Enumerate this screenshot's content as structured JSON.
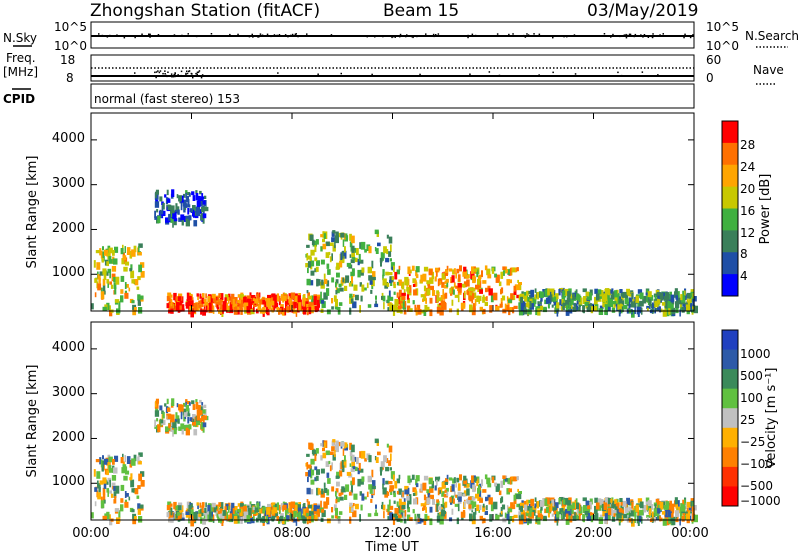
{
  "header": {
    "station": "Zhongshan Station (fitACF)",
    "beam": "Beam 15",
    "date": "03/May/2019"
  },
  "top_panels": {
    "nsky_label": "N.Sky",
    "nsky_ticks": [
      "10^5",
      "10^0"
    ],
    "nsearch_label": "N.Search",
    "nsearch_ticks": [
      "10^5",
      "10^0"
    ],
    "freq_label_line1": "Freq.",
    "freq_label_line2": "[MHz]",
    "freq_ticks": [
      "18",
      "8"
    ],
    "nave_label": "Nave",
    "nave_ticks": [
      "60",
      "0"
    ],
    "cpid_label": "CPID",
    "cpid_text": "normal (fast stereo) 153"
  },
  "colors": {
    "power_scale": [
      "#0000ff",
      "#1f4fa6",
      "#3a7f5a",
      "#40b040",
      "#c8c800",
      "#ffa500",
      "#ff7000",
      "#ff0000"
    ],
    "velocity_scale": [
      "#2040c0",
      "#2d5aa8",
      "#3b8a5a",
      "#60c040",
      "#c0c0c0",
      "#ffb000",
      "#ff8000",
      "#ff3000",
      "#ff0000"
    ]
  },
  "chart_data": [
    {
      "type": "heatmap",
      "panel": "power",
      "ylabel": "Slant Range [km]",
      "yticks": [
        "1000",
        "2000",
        "3000",
        "4000"
      ],
      "ylim": [
        180,
        4600
      ],
      "xlabel": "",
      "xticks": [],
      "colorbar": {
        "label": "Power [dB]",
        "ticks": [
          "4",
          "8",
          "12",
          "16",
          "20",
          "24",
          "28"
        ],
        "range": [
          0,
          32
        ]
      },
      "scatter_regions": [
        {
          "t0": 0.0,
          "t1": 2.0,
          "r0": 200,
          "r1": 1700,
          "value": 18
        },
        {
          "t0": 2.5,
          "t1": 4.5,
          "r0": 2200,
          "r1": 2900,
          "value": 6
        },
        {
          "t0": 3.0,
          "t1": 9.0,
          "r0": 200,
          "r1": 600,
          "value": 26
        },
        {
          "t0": 8.5,
          "t1": 12.0,
          "r0": 200,
          "r1": 2000,
          "value": 14
        },
        {
          "t0": 12.0,
          "t1": 17.0,
          "r0": 200,
          "r1": 1200,
          "value": 22
        },
        {
          "t0": 17.0,
          "t1": 24.0,
          "r0": 200,
          "r1": 700,
          "value": 12
        }
      ]
    },
    {
      "type": "heatmap",
      "panel": "velocity",
      "ylabel": "Slant Range [km]",
      "yticks": [
        "1000",
        "2000",
        "3000",
        "4000"
      ],
      "ylim": [
        180,
        4600
      ],
      "xlabel": "Time UT",
      "xticks": [
        "00:00",
        "04:00",
        "08:00",
        "12:00",
        "16:00",
        "20:00",
        "00:00"
      ],
      "colorbar": {
        "label": "Velocity [m s⁻¹]",
        "ticks": [
          "1000",
          "500",
          "100",
          "25",
          "−25",
          "−100",
          "−500",
          "−1000"
        ],
        "range": [
          -1200,
          1200
        ]
      }
    }
  ]
}
